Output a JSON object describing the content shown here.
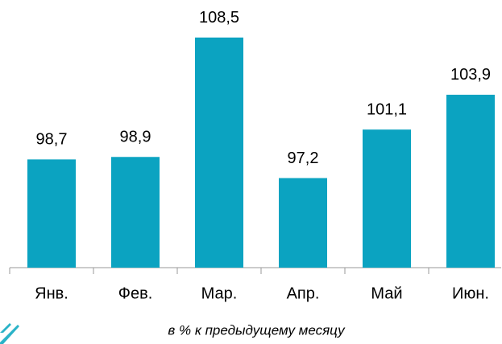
{
  "chart_data": {
    "type": "bar",
    "subtitle": "в % к предыдущему месяцу",
    "categories": [
      "Янв.",
      "Фев.",
      "Мар.",
      "Апр.",
      "Май",
      "Июн."
    ],
    "values": [
      98.7,
      98.9,
      108.5,
      97.2,
      101.1,
      103.9
    ],
    "value_labels": [
      "98,7",
      "98,9",
      "108,5",
      "97,2",
      "101,1",
      "103,9"
    ],
    "color": "#0ba3c1",
    "ylim": [
      90,
      111
    ]
  }
}
